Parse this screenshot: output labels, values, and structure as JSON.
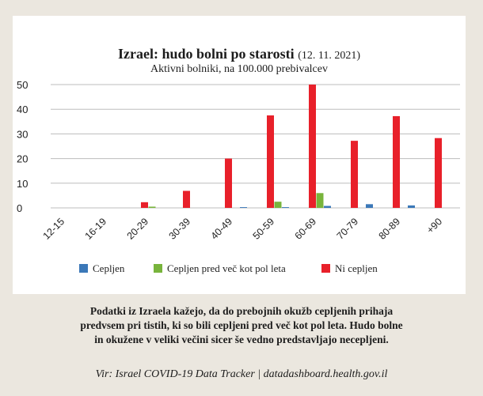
{
  "title": "Izrael: hudo bolni po starosti",
  "date": "(12. 11. 2021)",
  "subtitle": "Aktivni bolniki, na 100.000 prebivalcev",
  "caption_lines": [
    "Podatki iz Izraela kažejo, da do prebojnih okužb cepljenih prihaja",
    "predvsem pri tistih, ki so bili cepljeni pred več kot pol leta. Hudo bolne",
    "in okužene v veliki večini sicer še vedno predstavljajo necepljeni."
  ],
  "source": "Vir: Israel COVID-19 Data Tracker | datadashboard.health.gov.il",
  "colors": {
    "cepljen": "#3b78b8",
    "cepljen_pol_leta": "#78b43c",
    "ni_cepljen": "#e8202a"
  },
  "chart_data": {
    "type": "bar",
    "categories": [
      "12-15",
      "16-19",
      "20-29",
      "30-39",
      "40-49",
      "50-59",
      "60-69",
      "70-79",
      "80-89",
      "+90"
    ],
    "series": [
      {
        "name": "Cepljen",
        "values": [
          0,
          0,
          0,
          0,
          0.3,
          0.3,
          0.8,
          1.5,
          1.0,
          0
        ]
      },
      {
        "name": "Cepljen pred več kot pol leta",
        "values": [
          0,
          0,
          0.5,
          0,
          0,
          2.5,
          6.0,
          0,
          0,
          0
        ]
      },
      {
        "name": "Ni cepljen",
        "values": [
          0,
          0,
          2.3,
          6.9,
          20.0,
          37.5,
          50.0,
          27.2,
          37.2,
          28.3
        ]
      }
    ],
    "yticks": [
      "0",
      "10",
      "20",
      "30",
      "40",
      "50"
    ],
    "ylim": [
      0,
      50
    ],
    "grid": true,
    "legend_position": "bottom"
  }
}
